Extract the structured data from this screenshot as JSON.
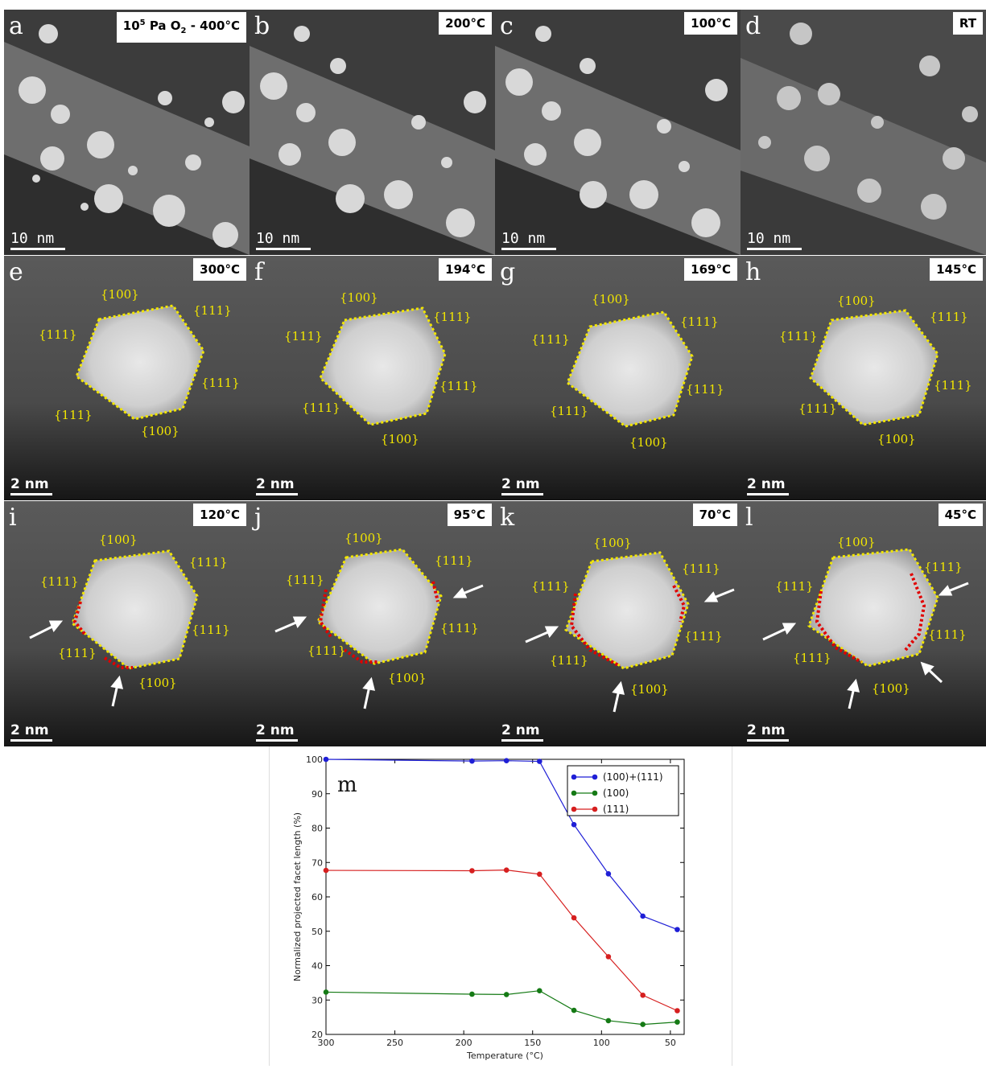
{
  "top_row": [
    {
      "letter": "a",
      "temp_main": "10",
      "temp_sup": "5",
      "temp_mid": " Pa O",
      "temp_sub": "2",
      "temp_end": " - 400°C",
      "scale": "10 nm"
    },
    {
      "letter": "b",
      "temp": "200°C",
      "scale": "10 nm"
    },
    {
      "letter": "c",
      "temp": "100°C",
      "scale": "10 nm"
    },
    {
      "letter": "d",
      "temp": "RT",
      "scale": "10 nm"
    }
  ],
  "middle_row": [
    {
      "letter": "e",
      "temp": "300°C",
      "scale": "2 nm"
    },
    {
      "letter": "f",
      "temp": "194°C",
      "scale": "2 nm"
    },
    {
      "letter": "g",
      "temp": "169°C",
      "scale": "2 nm"
    },
    {
      "letter": "h",
      "temp": "145°C",
      "scale": "2 nm"
    }
  ],
  "bottom_row": [
    {
      "letter": "i",
      "temp": "120°C",
      "scale": "2 nm"
    },
    {
      "letter": "j",
      "temp": "95°C",
      "scale": "2 nm"
    },
    {
      "letter": "k",
      "temp": "70°C",
      "scale": "2 nm"
    },
    {
      "letter": "l",
      "temp": "45°C",
      "scale": "2 nm"
    }
  ],
  "facet_labels": {
    "f100": "{100}",
    "f111": "{111}"
  },
  "colors": {
    "facet_outline": "#f2e600",
    "rounded_edge": "#e00000",
    "arrow": "#ffffff"
  },
  "chart_data": {
    "type": "line",
    "panel_label": "m",
    "xlabel": "Temperature (°C)",
    "ylabel": "Normalized projected facet length (%)",
    "xlim": [
      300,
      40
    ],
    "ylim": [
      20,
      100
    ],
    "xticks": [
      300,
      250,
      200,
      150,
      100,
      50
    ],
    "yticks": [
      20,
      30,
      40,
      50,
      60,
      70,
      80,
      90,
      100
    ],
    "legend_position": "top-right",
    "x": [
      300,
      194,
      169,
      145,
      120,
      95,
      70,
      45
    ],
    "series": [
      {
        "name": "(100)+(111)",
        "color": "#1f1fd6",
        "values": [
          100,
          99.5,
          99.6,
          99.4,
          81,
          66.7,
          54.4,
          50.5
        ]
      },
      {
        "name": "(100)",
        "color": "#157a15",
        "values": [
          32.3,
          31.7,
          31.6,
          32.7,
          27,
          24,
          22.9,
          23.6
        ]
      },
      {
        "name": "(111)",
        "color": "#d61f1f",
        "values": [
          67.7,
          67.6,
          67.8,
          66.6,
          53.9,
          42.6,
          31.4,
          26.9
        ]
      }
    ]
  }
}
